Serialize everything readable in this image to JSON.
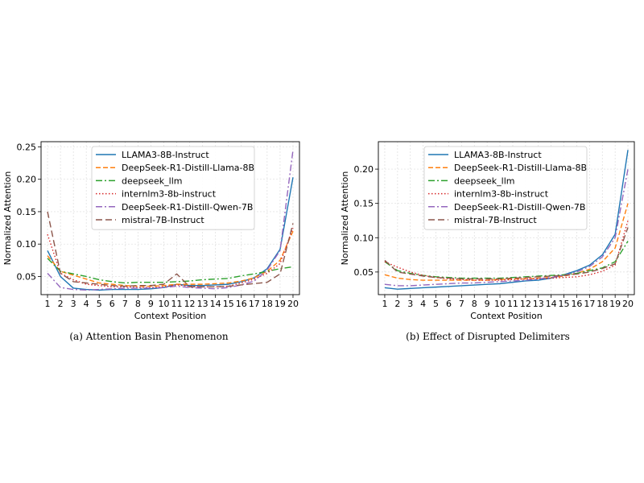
{
  "chart_data": [
    {
      "type": "line",
      "caption": "(a) Attention Basin Phenomenon",
      "xlabel": "Context Position",
      "ylabel": "Normalized Attention",
      "x": [
        1,
        2,
        3,
        4,
        5,
        6,
        7,
        8,
        9,
        10,
        11,
        12,
        13,
        14,
        15,
        16,
        17,
        18,
        19,
        20
      ],
      "xlim": [
        0.5,
        20.5
      ],
      "ylim": [
        0.022,
        0.258
      ],
      "yticks": [
        0.05,
        0.1,
        0.15,
        0.2,
        0.25
      ],
      "ytick_labels": [
        "0.05",
        "0.10",
        "0.15",
        "0.20",
        "0.25"
      ],
      "grid": true,
      "legend_position": "top-center",
      "series": [
        {
          "name": "LLAMA3-8B-Instruct",
          "color": "#1f77b4",
          "dash": "",
          "values": [
            0.09,
            0.05,
            0.032,
            0.03,
            0.029,
            0.03,
            0.03,
            0.03,
            0.031,
            0.033,
            0.038,
            0.036,
            0.036,
            0.037,
            0.038,
            0.042,
            0.048,
            0.062,
            0.092,
            0.203
          ]
        },
        {
          "name": "DeepSeek-R1-Distill-Llama-8B",
          "color": "#ff7f0e",
          "dash": "6,3",
          "values": [
            0.082,
            0.058,
            0.052,
            0.046,
            0.04,
            0.038,
            0.036,
            0.035,
            0.035,
            0.036,
            0.038,
            0.038,
            0.038,
            0.039,
            0.04,
            0.043,
            0.048,
            0.058,
            0.075,
            0.12
          ]
        },
        {
          "name": "deepseek_llm",
          "color": "#2ca02c",
          "dash": "8,3,2,3",
          "values": [
            0.078,
            0.058,
            0.054,
            0.05,
            0.045,
            0.042,
            0.04,
            0.041,
            0.041,
            0.041,
            0.042,
            0.043,
            0.045,
            0.046,
            0.047,
            0.051,
            0.054,
            0.058,
            0.062,
            0.065
          ]
        },
        {
          "name": "internlm3-8b-instruct",
          "color": "#d62728",
          "dash": "1.5,2.5",
          "values": [
            0.115,
            0.055,
            0.045,
            0.038,
            0.036,
            0.034,
            0.034,
            0.033,
            0.033,
            0.034,
            0.037,
            0.035,
            0.034,
            0.034,
            0.035,
            0.04,
            0.046,
            0.055,
            0.07,
            0.125
          ]
        },
        {
          "name": "DeepSeek-R1-Distill-Qwen-7B",
          "color": "#9467bd",
          "dash": "8,3,2,3",
          "values": [
            0.055,
            0.033,
            0.03,
            0.029,
            0.03,
            0.031,
            0.032,
            0.032,
            0.032,
            0.033,
            0.035,
            0.033,
            0.032,
            0.031,
            0.033,
            0.037,
            0.043,
            0.06,
            0.09,
            0.245
          ]
        },
        {
          "name": "mistral-7B-Instruct",
          "color": "#8c564b",
          "dash": "8,4",
          "values": [
            0.15,
            0.055,
            0.042,
            0.04,
            0.038,
            0.036,
            0.035,
            0.036,
            0.036,
            0.038,
            0.054,
            0.034,
            0.034,
            0.034,
            0.035,
            0.037,
            0.039,
            0.041,
            0.054,
            0.132
          ]
        }
      ]
    },
    {
      "type": "line",
      "caption": "(b) Effect of Disrupted Delimiters",
      "xlabel": "Context Position",
      "ylabel": "Normalized Attention",
      "x": [
        1,
        2,
        3,
        4,
        5,
        6,
        7,
        8,
        9,
        10,
        11,
        12,
        13,
        14,
        15,
        16,
        17,
        18,
        19,
        20
      ],
      "xlim": [
        0.5,
        20.5
      ],
      "ylim": [
        0.017,
        0.24
      ],
      "yticks": [
        0.05,
        0.1,
        0.15,
        0.2
      ],
      "ytick_labels": [
        "0.05",
        "0.10",
        "0.15",
        "0.20"
      ],
      "grid": true,
      "legend_position": "top-center",
      "series": [
        {
          "name": "LLAMA3-8B-Instruct",
          "color": "#1f77b4",
          "dash": "",
          "values": [
            0.027,
            0.025,
            0.026,
            0.027,
            0.028,
            0.029,
            0.03,
            0.031,
            0.032,
            0.033,
            0.035,
            0.037,
            0.038,
            0.041,
            0.046,
            0.052,
            0.06,
            0.075,
            0.105,
            0.228
          ]
        },
        {
          "name": "DeepSeek-R1-Distill-Llama-8B",
          "color": "#ff7f0e",
          "dash": "6,3",
          "values": [
            0.046,
            0.041,
            0.039,
            0.038,
            0.038,
            0.038,
            0.038,
            0.038,
            0.038,
            0.039,
            0.04,
            0.04,
            0.041,
            0.042,
            0.044,
            0.048,
            0.054,
            0.065,
            0.085,
            0.15
          ]
        },
        {
          "name": "deepseek_llm",
          "color": "#2ca02c",
          "dash": "8,3,2,3",
          "values": [
            0.065,
            0.052,
            0.048,
            0.045,
            0.043,
            0.042,
            0.041,
            0.041,
            0.041,
            0.041,
            0.042,
            0.043,
            0.044,
            0.045,
            0.046,
            0.048,
            0.052,
            0.056,
            0.065,
            0.095
          ]
        },
        {
          "name": "internlm3-8b-instruct",
          "color": "#d62728",
          "dash": "1.5,2.5",
          "values": [
            0.065,
            0.057,
            0.05,
            0.045,
            0.042,
            0.04,
            0.039,
            0.038,
            0.038,
            0.038,
            0.039,
            0.04,
            0.04,
            0.041,
            0.042,
            0.043,
            0.046,
            0.051,
            0.06,
            0.125
          ]
        },
        {
          "name": "DeepSeek-R1-Distill-Qwen-7B",
          "color": "#9467bd",
          "dash": "8,3,2,3",
          "values": [
            0.032,
            0.03,
            0.03,
            0.031,
            0.032,
            0.033,
            0.034,
            0.034,
            0.035,
            0.036,
            0.037,
            0.038,
            0.04,
            0.042,
            0.045,
            0.05,
            0.058,
            0.072,
            0.1,
            0.2
          ]
        },
        {
          "name": "mistral-7B-Instruct",
          "color": "#8c564b",
          "dash": "8,4",
          "values": [
            0.067,
            0.05,
            0.047,
            0.044,
            0.042,
            0.041,
            0.04,
            0.04,
            0.04,
            0.04,
            0.041,
            0.042,
            0.043,
            0.044,
            0.045,
            0.047,
            0.05,
            0.055,
            0.062,
            0.115
          ]
        }
      ]
    }
  ]
}
